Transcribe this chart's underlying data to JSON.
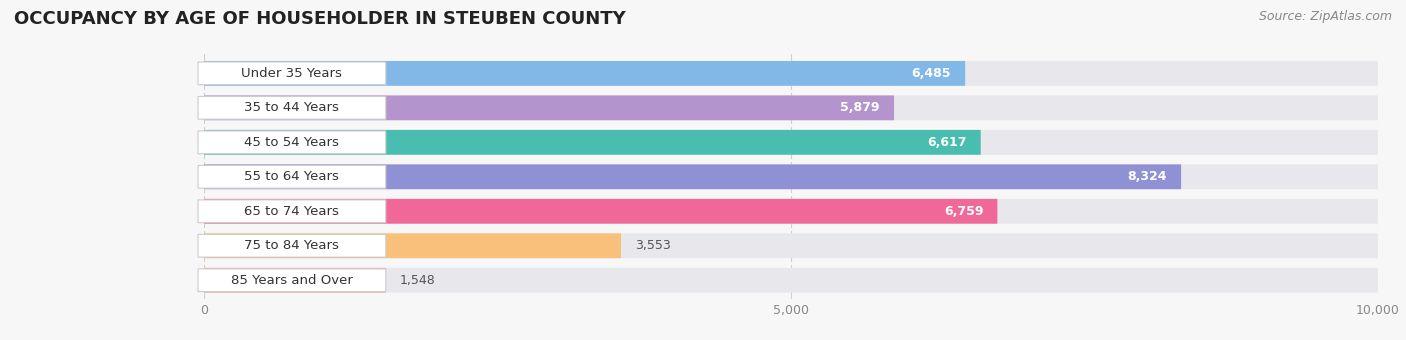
{
  "title": "OCCUPANCY BY AGE OF HOUSEHOLDER IN STEUBEN COUNTY",
  "source": "Source: ZipAtlas.com",
  "categories": [
    "Under 35 Years",
    "35 to 44 Years",
    "45 to 54 Years",
    "55 to 64 Years",
    "65 to 74 Years",
    "75 to 84 Years",
    "85 Years and Over"
  ],
  "values": [
    6485,
    5879,
    6617,
    8324,
    6759,
    3553,
    1548
  ],
  "bar_colors": [
    "#82B8E8",
    "#B494CC",
    "#48BDB0",
    "#9090D4",
    "#F06898",
    "#F8C07A",
    "#F0A8A0"
  ],
  "xlim": [
    0,
    10000
  ],
  "xticks": [
    0,
    5000,
    10000
  ],
  "background_color": "#f7f7f7",
  "bar_bg_color": "#e8e8ec",
  "title_fontsize": 13,
  "source_fontsize": 9,
  "label_fontsize": 9.5,
  "value_fontsize": 9,
  "bar_height": 0.72,
  "figsize": [
    14.06,
    3.4
  ],
  "dpi": 100
}
